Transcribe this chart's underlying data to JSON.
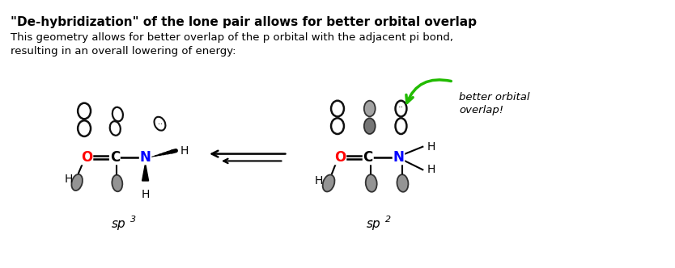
{
  "title": "\"De-hybridization\" of the lone pair allows for better orbital overlap",
  "subtitle_line1": "This geometry allows for better overlap of the p orbital with the adjacent pi bond,",
  "subtitle_line2": "resulting in an overall lowering of energy:",
  "label_sp3": "sp",
  "label_sp3_super": "3",
  "label_sp2": "sp",
  "label_sp2_super": "2",
  "arrow_label_line1": "better orbital",
  "arrow_label_line2": "overlap!",
  "background_color": "#ffffff",
  "title_color": "#000000",
  "O_color": "#ff0000",
  "N_color": "#0000ff",
  "C_color": "#000000",
  "H_color": "#000000",
  "orbital_color": "#1a1a1a",
  "arrow_color": "#22bb00",
  "eq_arrow_color": "#000000",
  "orbital_fill_light": "#aaaaaa",
  "orbital_fill_mid": "#777777",
  "orbital_fill_dark": "#444444"
}
